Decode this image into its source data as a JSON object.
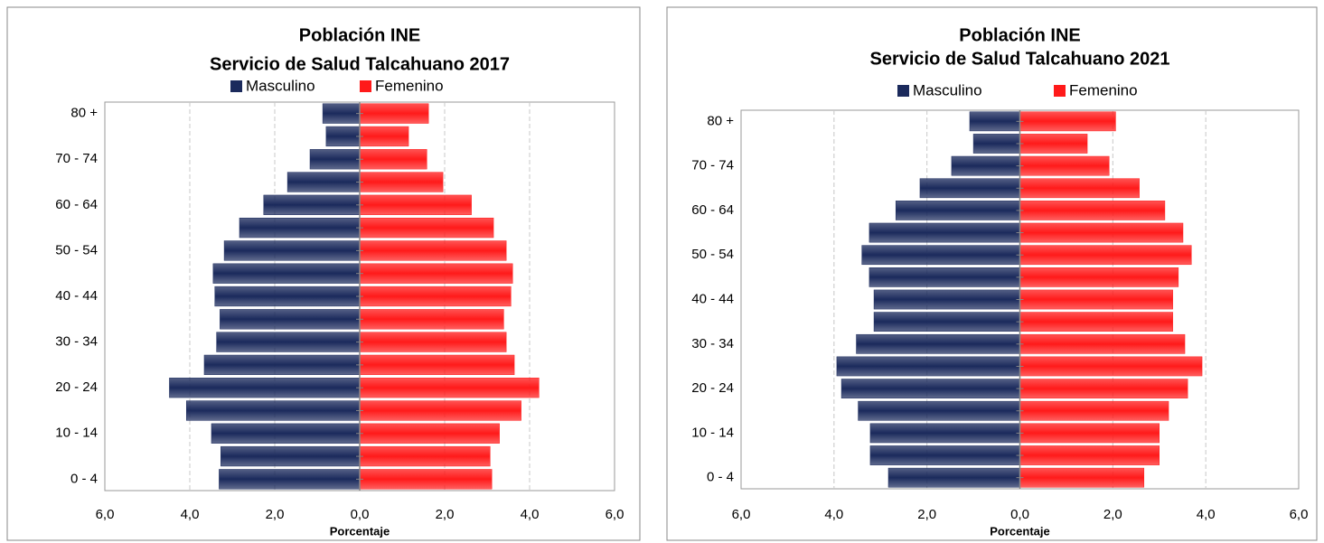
{
  "chart_data": [
    {
      "type": "pyramid",
      "title": [
        "Población INE",
        "Servicio de Salud Talcahuano 2017"
      ],
      "x_label": "Porcentaje",
      "categories": [
        "0 - 4",
        null,
        "10 - 14",
        null,
        "20 - 24",
        null,
        "30 - 34",
        null,
        "40 - 44",
        null,
        "50 - 54",
        null,
        "60 - 64",
        null,
        "70 - 74",
        null,
        "80 +"
      ],
      "series": [
        {
          "name": "Masculino",
          "color": "#1b2a5c",
          "values": [
            -3.31,
            -3.27,
            -3.49,
            -4.08,
            -4.48,
            -3.66,
            -3.37,
            -3.29,
            -3.41,
            -3.45,
            -3.19,
            -2.83,
            -2.26,
            -1.7,
            -1.17,
            -0.79,
            -0.87
          ]
        },
        {
          "name": "Femenino",
          "color": "#ff1a1a",
          "values": [
            3.11,
            3.07,
            3.29,
            3.8,
            4.22,
            3.64,
            3.45,
            3.39,
            3.56,
            3.6,
            3.45,
            3.15,
            2.63,
            1.96,
            1.58,
            1.15,
            1.62
          ]
        }
      ],
      "xlim": [
        -6,
        6
      ],
      "xticks": [
        {
          "value": -6,
          "label": "6,0"
        },
        {
          "value": -4,
          "label": "4,0"
        },
        {
          "value": -2,
          "label": "2,0"
        },
        {
          "value": 0,
          "label": "0,0"
        },
        {
          "value": 2,
          "label": "2,0"
        },
        {
          "value": 4,
          "label": "4,0"
        },
        {
          "value": 6,
          "label": "6,0"
        }
      ],
      "grid": true
    },
    {
      "type": "pyramid",
      "title": [
        "Población INE",
        "Servicio de Salud Talcahuano 2021"
      ],
      "x_label": "Porcentaje",
      "categories": [
        "0 - 4",
        null,
        "10 - 14",
        null,
        "20 - 24",
        null,
        "30 - 34",
        null,
        "40 - 44",
        null,
        "50 - 54",
        null,
        "60 - 64",
        null,
        "70 - 74",
        null,
        "80 +"
      ],
      "series": [
        {
          "name": "Masculino",
          "color": "#1b2a5c",
          "values": [
            -2.83,
            -3.22,
            -3.22,
            -3.48,
            -3.84,
            -3.94,
            -3.52,
            -3.14,
            -3.14,
            -3.24,
            -3.4,
            -3.24,
            -2.67,
            -2.15,
            -1.47,
            -1.0,
            -1.08
          ]
        },
        {
          "name": "Femenino",
          "color": "#ff1a1a",
          "values": [
            2.67,
            3.0,
            3.0,
            3.2,
            3.61,
            3.92,
            3.55,
            3.29,
            3.29,
            3.41,
            3.69,
            3.51,
            3.12,
            2.57,
            1.92,
            1.45,
            2.06
          ]
        }
      ],
      "xlim": [
        -6,
        6
      ],
      "xticks": [
        {
          "value": -6,
          "label": "6,0"
        },
        {
          "value": -4,
          "label": "4,0"
        },
        {
          "value": -2,
          "label": "2,0"
        },
        {
          "value": 0,
          "label": "0,0"
        },
        {
          "value": 2,
          "label": "2,0"
        },
        {
          "value": 4,
          "label": "4,0"
        },
        {
          "value": 6,
          "label": "6,0"
        }
      ],
      "grid": true
    }
  ]
}
